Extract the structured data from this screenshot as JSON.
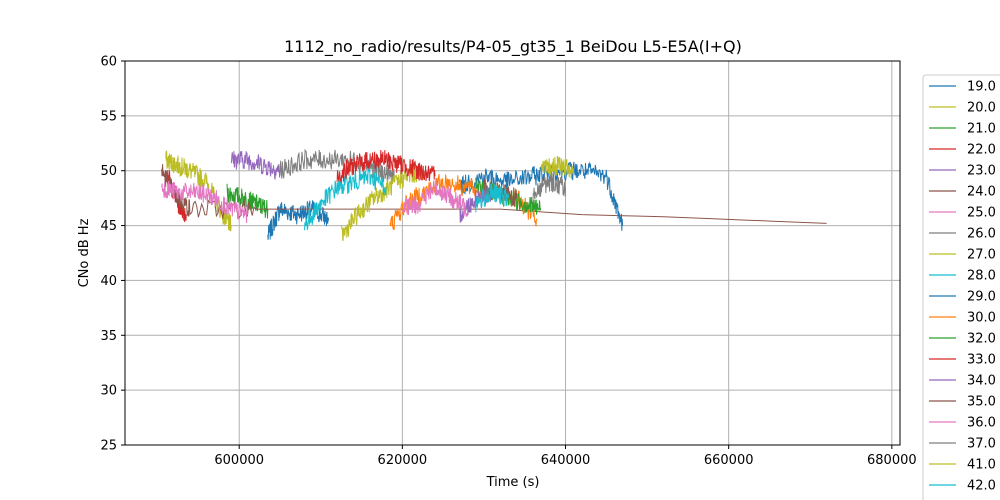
{
  "chart_data": {
    "type": "line",
    "title": "1112_no_radio/results/P4-05_gt35_1 BeiDou L5-E5A(I+Q)",
    "xlabel": "Time (s)",
    "ylabel": "CNo dB Hz",
    "xlim": [
      586000,
      681000
    ],
    "ylim": [
      25,
      60
    ],
    "xticks": [
      600000,
      620000,
      640000,
      660000,
      680000
    ],
    "yticks": [
      25,
      30,
      35,
      40,
      45,
      50,
      55,
      60
    ],
    "grid": true,
    "legend_position": "right-outside",
    "series": [
      {
        "name": "19.0",
        "color": "#1f77b4",
        "x": [
          603500,
          605000,
          607000,
          609000,
          611000
        ],
        "y": [
          44,
          46.5,
          46,
          46.5,
          45.5
        ]
      },
      {
        "name": "20.0",
        "color": "#bcbd22",
        "x": [
          591000,
          592500,
          594000,
          596000,
          598000,
          599000
        ],
        "y": [
          51,
          50.5,
          50,
          49,
          46,
          45
        ]
      },
      {
        "name": "21.0",
        "color": "#2ca02c",
        "x": [
          598500,
          600500,
          602000,
          603500
        ],
        "y": [
          48,
          47.5,
          47,
          46.5
        ]
      },
      {
        "name": "22.0",
        "color": "#d62728",
        "x": [
          591000,
          592500,
          593500
        ],
        "y": [
          50,
          47,
          46
        ]
      },
      {
        "name": "23.0",
        "color": "#9467bd",
        "x": [
          599000,
          601000,
          603000,
          605000
        ],
        "y": [
          51,
          51,
          50.5,
          50
        ]
      },
      {
        "name": "24.0",
        "color": "#8c564b",
        "x": [
          590500,
          592000,
          594000,
          602000,
          612000,
          622000,
          632000,
          642000,
          652000,
          662000,
          672000
        ],
        "y": [
          50,
          48,
          46.5,
          46.5,
          46.5,
          46.5,
          46.5,
          46,
          45.8,
          45.5,
          45.2
        ]
      },
      {
        "name": "25.0",
        "color": "#e377c2",
        "x": [
          590500,
          592500,
          595000,
          597000,
          599000,
          601000
        ],
        "y": [
          48.5,
          48,
          48,
          47.5,
          46.5,
          46
        ]
      },
      {
        "name": "26.0",
        "color": "#7f7f7f",
        "x": [
          605000,
          608000,
          611000,
          614000,
          617000,
          619000
        ],
        "y": [
          50,
          51,
          51,
          51,
          50,
          49.5
        ]
      },
      {
        "name": "27.0",
        "color": "#bcbd22",
        "x": [
          612500,
          614500,
          616500,
          618500,
          620500,
          622500
        ],
        "y": [
          44,
          46,
          47.5,
          48.5,
          49.5,
          50
        ]
      },
      {
        "name": "28.0",
        "color": "#17becf",
        "x": [
          608000,
          610000,
          612000,
          614000,
          616000,
          618000
        ],
        "y": [
          45,
          47,
          48.5,
          49,
          49.5,
          48.5
        ]
      },
      {
        "name": "29.0",
        "color": "#1f77b4",
        "x": [
          627000,
          630000,
          633000,
          636000,
          639000,
          642000,
          645000,
          647000
        ],
        "y": [
          48.5,
          49.5,
          49,
          49.5,
          50,
          50,
          49.5,
          45
        ]
      },
      {
        "name": "30.0",
        "color": "#ff7f0e",
        "x": [
          618500,
          620500,
          622500,
          625000,
          628000,
          631000,
          634000,
          636500
        ],
        "y": [
          45,
          47,
          48,
          49,
          48.5,
          48,
          47.5,
          45.5
        ]
      },
      {
        "name": "32.0",
        "color": "#2ca02c",
        "x": [
          629000,
          631000,
          633000,
          635000,
          637000
        ],
        "y": [
          48.5,
          48,
          47.5,
          47,
          46.5
        ]
      },
      {
        "name": "33.0",
        "color": "#d62728",
        "x": [
          612000,
          614000,
          616000,
          618000,
          620000,
          622000,
          624000
        ],
        "y": [
          49.5,
          50.5,
          51,
          51,
          50.5,
          50,
          49.5
        ]
      },
      {
        "name": "34.0",
        "color": "#9467bd",
        "x": [
          627000,
          629000,
          631000
        ],
        "y": [
          46,
          47.5,
          48
        ]
      },
      {
        "name": "35.0",
        "color": "#8c564b",
        "x": [
          630000,
          632000,
          634000
        ],
        "y": [
          48.5,
          48,
          47.5
        ]
      },
      {
        "name": "36.0",
        "color": "#e377c2",
        "x": [
          620000,
          622000,
          624000,
          626000,
          628000
        ],
        "y": [
          46.5,
          47,
          48.5,
          47.5,
          46.5
        ]
      },
      {
        "name": "37.0",
        "color": "#7f7f7f",
        "x": [
          636000,
          638000,
          640000
        ],
        "y": [
          48,
          49,
          48.5
        ]
      },
      {
        "name": "41.0",
        "color": "#bcbd22",
        "x": [
          637000,
          639000,
          641000
        ],
        "y": [
          50,
          50.5,
          50
        ]
      },
      {
        "name": "42.0",
        "color": "#17becf",
        "x": [
          629000,
          631000,
          633000
        ],
        "y": [
          47,
          48,
          47.5
        ]
      }
    ]
  }
}
